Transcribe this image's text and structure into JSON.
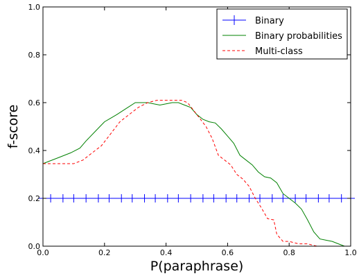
{
  "chart_data": {
    "type": "line",
    "xlabel": "P(paraphrase)",
    "ylabel": "f-score",
    "xlim": [
      0.0,
      1.0
    ],
    "ylim": [
      0.0,
      1.0
    ],
    "x_ticks": [
      "0.0",
      "0.2",
      "0.4",
      "0.6",
      "0.8",
      "1.0"
    ],
    "y_ticks": [
      "0.0",
      "0.2",
      "0.4",
      "0.6",
      "0.8",
      "1.0"
    ],
    "grid": false,
    "legend_position": "top-right",
    "series": [
      {
        "name": "Binary",
        "style": "solid-plus-markers",
        "color": "#0000ff",
        "x": [
          0.0,
          0.025,
          0.065,
          0.1,
          0.14,
          0.18,
          0.215,
          0.255,
          0.29,
          0.33,
          0.365,
          0.405,
          0.44,
          0.48,
          0.52,
          0.555,
          0.595,
          0.63,
          0.67,
          0.705,
          0.745,
          0.78,
          0.82,
          0.855,
          0.895,
          0.93,
          0.97,
          1.0
        ],
        "y": [
          0.2,
          0.2,
          0.2,
          0.2,
          0.2,
          0.2,
          0.2,
          0.2,
          0.2,
          0.2,
          0.2,
          0.2,
          0.2,
          0.2,
          0.2,
          0.2,
          0.2,
          0.2,
          0.2,
          0.2,
          0.2,
          0.2,
          0.2,
          0.2,
          0.2,
          0.2,
          0.2,
          0.2
        ]
      },
      {
        "name": "Binary probabilities",
        "style": "solid",
        "color": "#008000",
        "x": [
          0.0,
          0.02,
          0.05,
          0.07,
          0.09,
          0.12,
          0.14,
          0.17,
          0.2,
          0.22,
          0.24,
          0.27,
          0.3,
          0.32,
          0.34,
          0.36,
          0.38,
          0.4,
          0.42,
          0.44,
          0.46,
          0.48,
          0.5,
          0.52,
          0.54,
          0.56,
          0.58,
          0.6,
          0.62,
          0.64,
          0.66,
          0.68,
          0.7,
          0.72,
          0.74,
          0.76,
          0.78,
          0.8,
          0.82,
          0.84,
          0.86,
          0.88,
          0.9,
          0.92,
          0.94,
          0.96,
          0.98,
          1.0
        ],
        "y": [
          0.345,
          0.355,
          0.37,
          0.38,
          0.39,
          0.41,
          0.44,
          0.48,
          0.52,
          0.535,
          0.55,
          0.575,
          0.6,
          0.6,
          0.6,
          0.595,
          0.59,
          0.595,
          0.6,
          0.6,
          0.59,
          0.58,
          0.55,
          0.53,
          0.52,
          0.515,
          0.49,
          0.46,
          0.43,
          0.38,
          0.36,
          0.34,
          0.31,
          0.29,
          0.285,
          0.265,
          0.22,
          0.2,
          0.18,
          0.155,
          0.11,
          0.06,
          0.03,
          0.025,
          0.02,
          0.01,
          0.0,
          0.0
        ]
      },
      {
        "name": "Multi-class",
        "style": "dashed",
        "color": "#ff0000",
        "x": [
          0.0,
          0.05,
          0.1,
          0.13,
          0.16,
          0.19,
          0.22,
          0.25,
          0.28,
          0.31,
          0.34,
          0.37,
          0.4,
          0.43,
          0.45,
          0.47,
          0.5,
          0.53,
          0.55,
          0.57,
          0.59,
          0.61,
          0.63,
          0.65,
          0.67,
          0.69,
          0.71,
          0.73,
          0.75,
          0.76,
          0.78,
          0.8,
          0.83,
          0.86,
          0.89,
          0.92,
          0.95,
          1.0
        ],
        "y": [
          0.345,
          0.345,
          0.345,
          0.36,
          0.39,
          0.42,
          0.47,
          0.52,
          0.55,
          0.58,
          0.6,
          0.61,
          0.61,
          0.61,
          0.61,
          0.6,
          0.55,
          0.5,
          0.45,
          0.38,
          0.36,
          0.34,
          0.3,
          0.28,
          0.25,
          0.2,
          0.16,
          0.115,
          0.11,
          0.05,
          0.02,
          0.02,
          0.01,
          0.01,
          0.0,
          0.0,
          0.0,
          0.0
        ]
      }
    ]
  }
}
